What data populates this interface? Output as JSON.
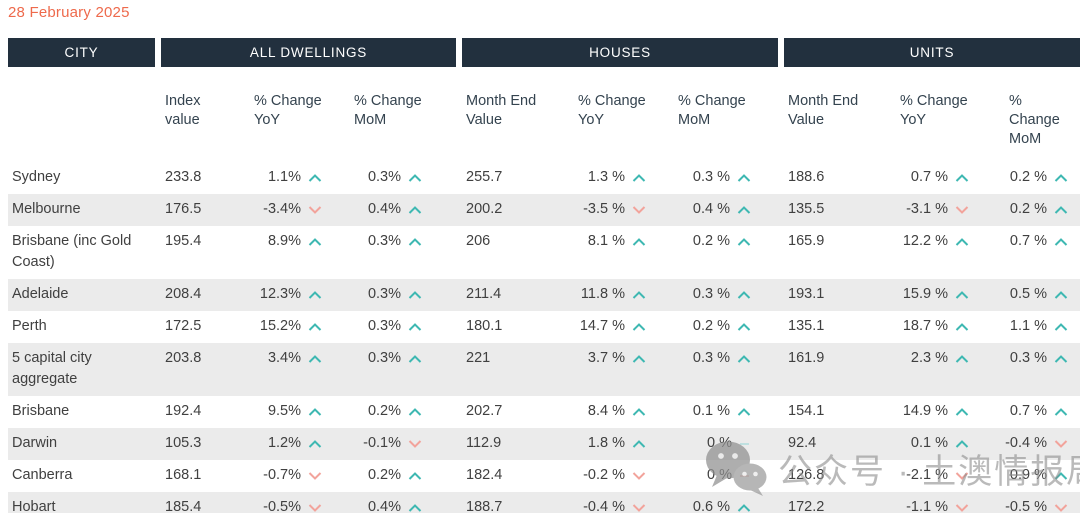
{
  "date": "28 February 2025",
  "colors": {
    "header_bg": "#22303e",
    "date_text": "#ee6a4c",
    "up": "#3eb8b2",
    "down": "#f2a39b",
    "flat-up": "#bfe0e0",
    "flat-down": "#f5d2cd",
    "row_alt": "#ebebeb"
  },
  "table": {
    "group_headers": [
      {
        "label": "CITY"
      },
      {
        "label": "ALL DWELLINGS"
      },
      {
        "label": "HOUSES"
      },
      {
        "label": "UNITS"
      }
    ],
    "column_headers": {
      "all_dwellings": [
        "Index value",
        "% Change YoY",
        "% Change MoM"
      ],
      "houses": [
        "Month End Value",
        "% Change YoY",
        "% Change MoM"
      ],
      "units": [
        "Month End Value",
        "% Change YoY",
        "% Change MoM"
      ]
    },
    "rows": [
      {
        "city": "Sydney",
        "all_dwellings": {
          "index_value": "233.8",
          "yoy": {
            "value": "1.1%",
            "dir": "up"
          },
          "mom": {
            "value": "0.3%",
            "dir": "up"
          }
        },
        "houses": {
          "month_end_value": "255.7",
          "yoy": {
            "value": "1.3 %",
            "dir": "up"
          },
          "mom": {
            "value": "0.3 %",
            "dir": "up"
          }
        },
        "units": {
          "month_end_value": "188.6",
          "yoy": {
            "value": "0.7 %",
            "dir": "up"
          },
          "mom": {
            "value": "0.2 %",
            "dir": "up"
          }
        }
      },
      {
        "city": "Melbourne",
        "all_dwellings": {
          "index_value": "176.5",
          "yoy": {
            "value": "-3.4%",
            "dir": "down"
          },
          "mom": {
            "value": "0.4%",
            "dir": "up"
          }
        },
        "houses": {
          "month_end_value": "200.2",
          "yoy": {
            "value": "-3.5 %",
            "dir": "down"
          },
          "mom": {
            "value": "0.4 %",
            "dir": "up"
          }
        },
        "units": {
          "month_end_value": "135.5",
          "yoy": {
            "value": "-3.1 %",
            "dir": "down"
          },
          "mom": {
            "value": "0.2 %",
            "dir": "up"
          }
        }
      },
      {
        "city": "Brisbane (inc Gold Coast)",
        "all_dwellings": {
          "index_value": "195.4",
          "yoy": {
            "value": "8.9%",
            "dir": "up"
          },
          "mom": {
            "value": "0.3%",
            "dir": "up"
          }
        },
        "houses": {
          "month_end_value": "206",
          "yoy": {
            "value": "8.1 %",
            "dir": "up"
          },
          "mom": {
            "value": "0.2 %",
            "dir": "up"
          }
        },
        "units": {
          "month_end_value": "165.9",
          "yoy": {
            "value": "12.2 %",
            "dir": "up"
          },
          "mom": {
            "value": "0.7 %",
            "dir": "up"
          }
        }
      },
      {
        "city": "Adelaide",
        "all_dwellings": {
          "index_value": "208.4",
          "yoy": {
            "value": "12.3%",
            "dir": "up"
          },
          "mom": {
            "value": "0.3%",
            "dir": "up"
          }
        },
        "houses": {
          "month_end_value": "211.4",
          "yoy": {
            "value": "11.8 %",
            "dir": "up"
          },
          "mom": {
            "value": "0.3 %",
            "dir": "up"
          }
        },
        "units": {
          "month_end_value": "193.1",
          "yoy": {
            "value": "15.9 %",
            "dir": "up"
          },
          "mom": {
            "value": "0.5 %",
            "dir": "up"
          }
        }
      },
      {
        "city": "Perth",
        "all_dwellings": {
          "index_value": "172.5",
          "yoy": {
            "value": "15.2%",
            "dir": "up"
          },
          "mom": {
            "value": "0.3%",
            "dir": "up"
          }
        },
        "houses": {
          "month_end_value": "180.1",
          "yoy": {
            "value": "14.7 %",
            "dir": "up"
          },
          "mom": {
            "value": "0.2 %",
            "dir": "up"
          }
        },
        "units": {
          "month_end_value": "135.1",
          "yoy": {
            "value": "18.7 %",
            "dir": "up"
          },
          "mom": {
            "value": "1.1 %",
            "dir": "up"
          }
        }
      },
      {
        "city": "5 capital city aggregate",
        "all_dwellings": {
          "index_value": "203.8",
          "yoy": {
            "value": "3.4%",
            "dir": "up"
          },
          "mom": {
            "value": "0.3%",
            "dir": "up"
          }
        },
        "houses": {
          "month_end_value": "221",
          "yoy": {
            "value": "3.7 %",
            "dir": "up"
          },
          "mom": {
            "value": "0.3 %",
            "dir": "up"
          }
        },
        "units": {
          "month_end_value": "161.9",
          "yoy": {
            "value": "2.3 %",
            "dir": "up"
          },
          "mom": {
            "value": "0.3 %",
            "dir": "up"
          }
        }
      },
      {
        "city": "Brisbane",
        "all_dwellings": {
          "index_value": "192.4",
          "yoy": {
            "value": "9.5%",
            "dir": "up"
          },
          "mom": {
            "value": "0.2%",
            "dir": "up"
          }
        },
        "houses": {
          "month_end_value": "202.7",
          "yoy": {
            "value": "8.4 %",
            "dir": "up"
          },
          "mom": {
            "value": "0.1 %",
            "dir": "up"
          }
        },
        "units": {
          "month_end_value": "154.1",
          "yoy": {
            "value": "14.9 %",
            "dir": "up"
          },
          "mom": {
            "value": "0.7 %",
            "dir": "up"
          }
        }
      },
      {
        "city": "Darwin",
        "all_dwellings": {
          "index_value": "105.3",
          "yoy": {
            "value": "1.2%",
            "dir": "up"
          },
          "mom": {
            "value": "-0.1%",
            "dir": "down"
          }
        },
        "houses": {
          "month_end_value": "112.9",
          "yoy": {
            "value": "1.8 %",
            "dir": "up"
          },
          "mom": {
            "value": "0 %",
            "dir": "flat-up"
          }
        },
        "units": {
          "month_end_value": "92.4",
          "yoy": {
            "value": "0.1 %",
            "dir": "up"
          },
          "mom": {
            "value": "-0.4 %",
            "dir": "down"
          }
        }
      },
      {
        "city": "Canberra",
        "all_dwellings": {
          "index_value": "168.1",
          "yoy": {
            "value": "-0.7%",
            "dir": "down"
          },
          "mom": {
            "value": "0.2%",
            "dir": "up"
          }
        },
        "houses": {
          "month_end_value": "182.4",
          "yoy": {
            "value": "-0.2 %",
            "dir": "down"
          },
          "mom": {
            "value": "0 %",
            "dir": "flat-down"
          }
        },
        "units": {
          "month_end_value": "126.8",
          "yoy": {
            "value": "-2.1 %",
            "dir": "down"
          },
          "mom": {
            "value": "0.9 %",
            "dir": "up"
          }
        }
      },
      {
        "city": "Hobart",
        "all_dwellings": {
          "index_value": "185.4",
          "yoy": {
            "value": "-0.5%",
            "dir": "down"
          },
          "mom": {
            "value": "0.4%",
            "dir": "up"
          }
        },
        "houses": {
          "month_end_value": "188.7",
          "yoy": {
            "value": "-0.4 %",
            "dir": "down"
          },
          "mom": {
            "value": "0.6 %",
            "dir": "up"
          }
        },
        "units": {
          "month_end_value": "172.2",
          "yoy": {
            "value": "-1.1 %",
            "dir": "down"
          },
          "mom": {
            "value": "-0.5 %",
            "dir": "down"
          }
        }
      }
    ]
  },
  "watermark": {
    "icon": "wechat-icon",
    "text": "公众号 · 土澳情报局"
  }
}
